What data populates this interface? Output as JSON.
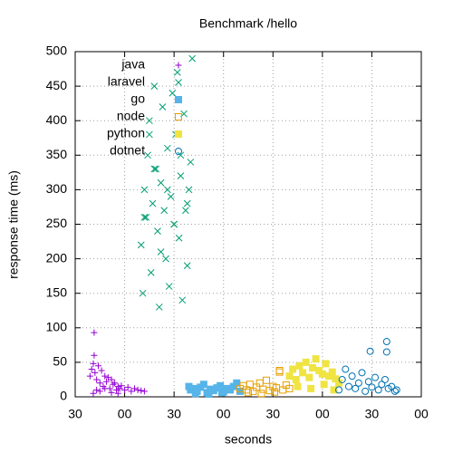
{
  "chart_data": {
    "type": "scatter",
    "title": "Benchmark /hello",
    "xlabel": "seconds",
    "ylabel": "response time (ms)",
    "xlim": [
      0,
      210
    ],
    "xticks": [
      {
        "value": 0,
        "label": "30"
      },
      {
        "value": 30,
        "label": "00"
      },
      {
        "value": 60,
        "label": "30"
      },
      {
        "value": 90,
        "label": "00"
      },
      {
        "value": 120,
        "label": "30"
      },
      {
        "value": 150,
        "label": "00"
      },
      {
        "value": 180,
        "label": "30"
      },
      {
        "value": 210,
        "label": "00"
      }
    ],
    "ylim": [
      0,
      500
    ],
    "yticks": [
      0,
      50,
      100,
      150,
      200,
      250,
      300,
      350,
      400,
      450,
      500
    ],
    "grid": true,
    "legend": "top-left",
    "series": [
      {
        "name": "java",
        "color": "#9400d3",
        "marker": "plus",
        "x": [
          9,
          10,
          11,
          11.5,
          12,
          13,
          14,
          15,
          16,
          17,
          18,
          19,
          20,
          21,
          22,
          23,
          24,
          25,
          26,
          27,
          28,
          30,
          32,
          34,
          36,
          38,
          40,
          42,
          11,
          11.5,
          13,
          15,
          18,
          22,
          26
        ],
        "values": [
          30,
          40,
          48,
          93,
          35,
          25,
          45,
          20,
          38,
          15,
          30,
          22,
          28,
          12,
          25,
          18,
          20,
          10,
          15,
          12,
          16,
          10,
          14,
          8,
          12,
          10,
          9,
          8,
          5,
          60,
          10,
          8,
          12,
          6,
          5
        ]
      },
      {
        "name": "laravel",
        "color": "#009e73",
        "marker": "cross",
        "x": [
          40,
          41,
          42,
          43,
          44,
          45,
          46,
          47,
          48,
          49,
          50,
          51,
          52,
          53,
          54,
          55,
          56,
          57,
          58,
          59,
          60,
          61,
          62,
          63,
          64,
          65,
          66,
          67,
          68,
          69,
          70,
          71,
          42,
          45,
          48,
          52,
          56,
          60,
          64,
          68
        ],
        "values": [
          220,
          150,
          300,
          260,
          350,
          400,
          180,
          280,
          450,
          330,
          240,
          130,
          310,
          420,
          270,
          200,
          360,
          160,
          290,
          440,
          250,
          380,
          470,
          230,
          320,
          140,
          410,
          270,
          190,
          300,
          340,
          490,
          260,
          380,
          330,
          210,
          300,
          250,
          350,
          280
        ]
      },
      {
        "name": "go",
        "color": "#56b4e9",
        "marker": "filled-square",
        "x": [
          69,
          70,
          72,
          74,
          76,
          78,
          80,
          82,
          84,
          86,
          88,
          90,
          92,
          94,
          96,
          98,
          100,
          73,
          81,
          89
        ],
        "values": [
          15,
          10,
          12,
          8,
          14,
          18,
          6,
          11,
          9,
          13,
          16,
          7,
          12,
          10,
          15,
          20,
          8,
          5,
          4,
          6
        ]
      },
      {
        "name": "node",
        "color": "#e69f00",
        "marker": "open-square",
        "x": [
          100,
          102,
          104,
          106,
          108,
          110,
          112,
          114,
          116,
          118,
          120,
          122,
          124,
          126,
          128,
          130,
          105,
          113,
          121,
          124
        ],
        "values": [
          12,
          16,
          10,
          18,
          8,
          14,
          20,
          11,
          24,
          9,
          15,
          13,
          38,
          10,
          17,
          12,
          6,
          5,
          7,
          36
        ]
      },
      {
        "name": "python",
        "color": "#f0e442",
        "marker": "filled-square",
        "x": [
          130,
          132,
          134,
          136,
          138,
          140,
          142,
          144,
          146,
          148,
          150,
          152,
          154,
          156,
          158,
          160,
          135,
          143,
          151,
          157
        ],
        "values": [
          30,
          40,
          25,
          45,
          35,
          50,
          28,
          42,
          55,
          38,
          33,
          48,
          30,
          36,
          26,
          20,
          15,
          12,
          18,
          10
        ]
      },
      {
        "name": "dotnet",
        "color": "#0072b2",
        "marker": "open-circle",
        "x": [
          160,
          162,
          164,
          166,
          168,
          170,
          172,
          174,
          176,
          178,
          179,
          180,
          182,
          184,
          186,
          188,
          189,
          190,
          192,
          194,
          195,
          189
        ],
        "values": [
          10,
          25,
          40,
          15,
          30,
          12,
          20,
          35,
          8,
          22,
          66,
          14,
          28,
          10,
          18,
          25,
          80,
          12,
          15,
          8,
          10,
          65
        ]
      }
    ]
  }
}
